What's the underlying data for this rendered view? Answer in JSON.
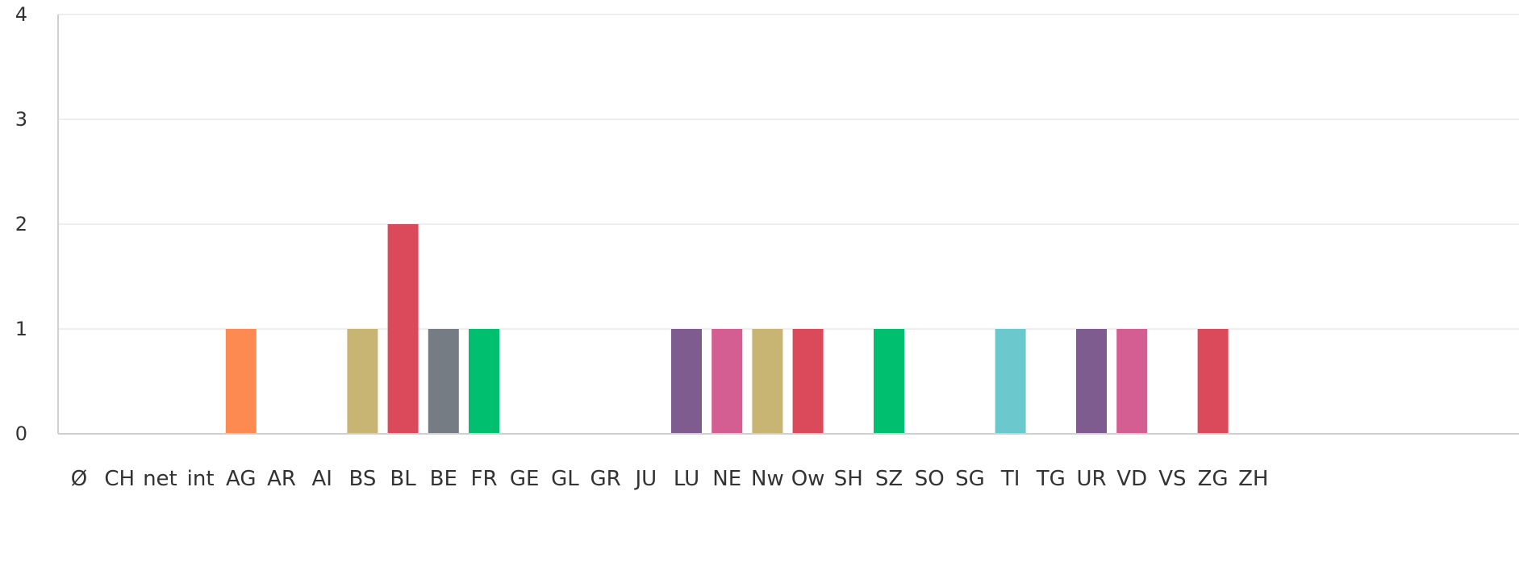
{
  "chart_data": {
    "type": "bar",
    "categories": [
      "Ø",
      "CH",
      "net",
      "int",
      "AG",
      "AR",
      "AI",
      "BS",
      "BL",
      "BE",
      "FR",
      "GE",
      "GL",
      "GR",
      "JU",
      "LU",
      "NE",
      "Nw",
      "Ow",
      "SH",
      "SZ",
      "SO",
      "SG",
      "TI",
      "TG",
      "UR",
      "VD",
      "VS",
      "ZG",
      "ZH"
    ],
    "values": [
      0,
      0,
      0,
      0,
      1,
      0,
      0,
      1,
      2,
      1,
      1,
      0,
      0,
      0,
      0,
      1,
      1,
      1,
      1,
      0,
      1,
      0,
      0,
      1,
      0,
      1,
      1,
      0,
      1,
      0
    ],
    "colors": [
      "#2f7ed8",
      "#2f7ed8",
      "#2f7ed8",
      "#2f7ed8",
      "#fd8b51",
      "#2f7ed8",
      "#2f7ed8",
      "#c8b574",
      "#db4a5b",
      "#767c84",
      "#00bf6f",
      "#2f7ed8",
      "#2f7ed8",
      "#2f7ed8",
      "#2f7ed8",
      "#7e5c8f",
      "#d45d92",
      "#c8b574",
      "#db4a5b",
      "#2f7ed8",
      "#00bf6f",
      "#2f7ed8",
      "#2f7ed8",
      "#6bc8cd",
      "#2f7ed8",
      "#7e5c8f",
      "#d45d92",
      "#2f7ed8",
      "#db4a5b",
      "#2f7ed8"
    ],
    "yticks": [
      0,
      1,
      2,
      3,
      4
    ],
    "ylim": [
      0,
      4
    ],
    "grid": true,
    "title": "",
    "xlabel": "",
    "ylabel": ""
  }
}
